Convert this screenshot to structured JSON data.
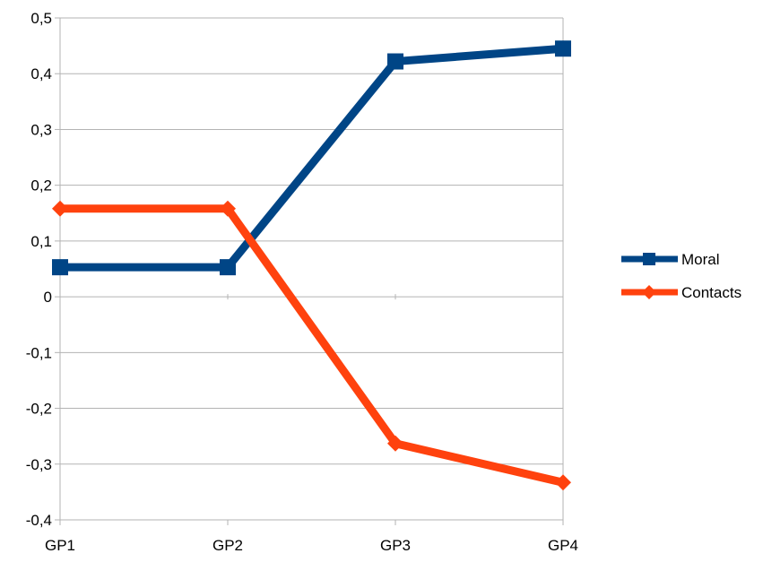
{
  "chart_data": {
    "type": "line",
    "categories": [
      "GP1",
      "GP2",
      "GP3",
      "GP4"
    ],
    "series": [
      {
        "name": "Moral",
        "values": [
          0.053,
          0.053,
          0.422,
          0.445
        ],
        "color": "#004586",
        "marker": "square"
      },
      {
        "name": "Contacts",
        "values": [
          0.158,
          0.158,
          -0.263,
          -0.333
        ],
        "color": "#ff420e",
        "marker": "diamond"
      }
    ],
    "ylim": [
      -0.4,
      0.5
    ],
    "yticks": [
      0.5,
      0.4,
      0.3,
      0.2,
      0.1,
      0,
      -0.1,
      -0.2,
      -0.3,
      -0.4
    ],
    "ytick_labels": [
      "0,5",
      "0,4",
      "0,3",
      "0,2",
      "0,1",
      "0",
      "-0,1",
      "-0,2",
      "-0,3",
      "-0,4"
    ],
    "grid": true,
    "legend_position": "right"
  }
}
